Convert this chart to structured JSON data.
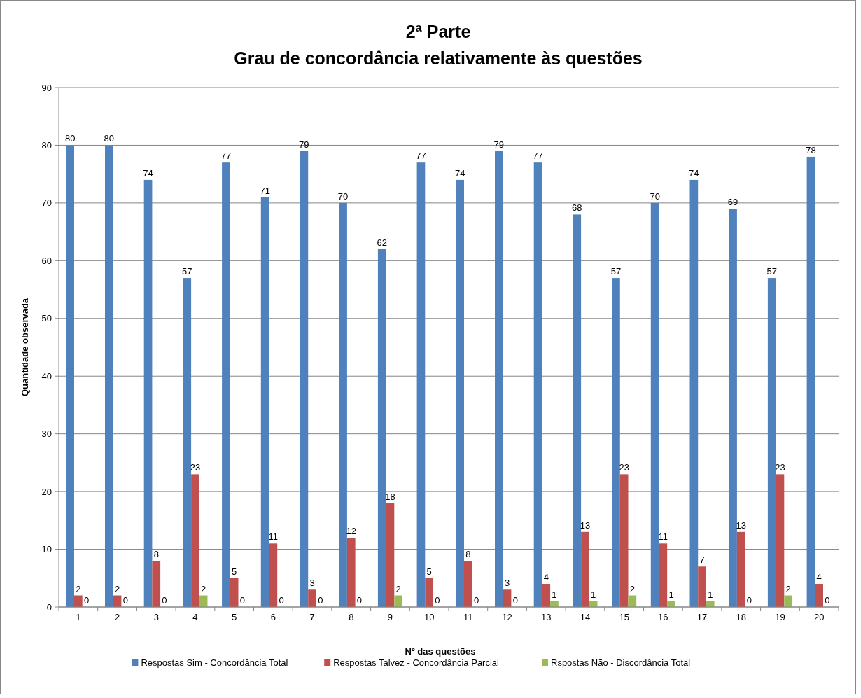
{
  "chart_data": {
    "type": "bar",
    "title": "2ª Parte\nGrau de concordância relativamente às questões",
    "xlabel": "Nº das questões",
    "ylabel": "Quantidade observada",
    "categories": [
      "1",
      "2",
      "3",
      "4",
      "5",
      "6",
      "7",
      "8",
      "9",
      "10",
      "11",
      "12",
      "13",
      "14",
      "15",
      "16",
      "17",
      "18",
      "19",
      "20"
    ],
    "series": [
      {
        "name": "Respostas Sim - Concordância Total",
        "color": "#4f81bd",
        "values": [
          80,
          80,
          74,
          57,
          77,
          71,
          79,
          70,
          62,
          77,
          74,
          79,
          77,
          68,
          57,
          70,
          74,
          69,
          57,
          78
        ]
      },
      {
        "name": "Respostas Talvez - Concordância Parcial",
        "color": "#c0504d",
        "values": [
          2,
          2,
          8,
          23,
          5,
          11,
          3,
          12,
          18,
          5,
          8,
          3,
          4,
          13,
          23,
          11,
          7,
          13,
          23,
          4
        ]
      },
      {
        "name": "Rspostas Não - Discordância Total",
        "color": "#9bbb59",
        "values": [
          0,
          0,
          0,
          2,
          0,
          0,
          0,
          0,
          2,
          0,
          0,
          0,
          1,
          1,
          2,
          1,
          1,
          0,
          2,
          0
        ]
      }
    ],
    "ylim": [
      0,
      90
    ],
    "yticks": [
      0,
      10,
      20,
      30,
      40,
      50,
      60,
      70,
      80,
      90
    ],
    "grid": "y",
    "legend": "bottom",
    "data_labels": true
  }
}
